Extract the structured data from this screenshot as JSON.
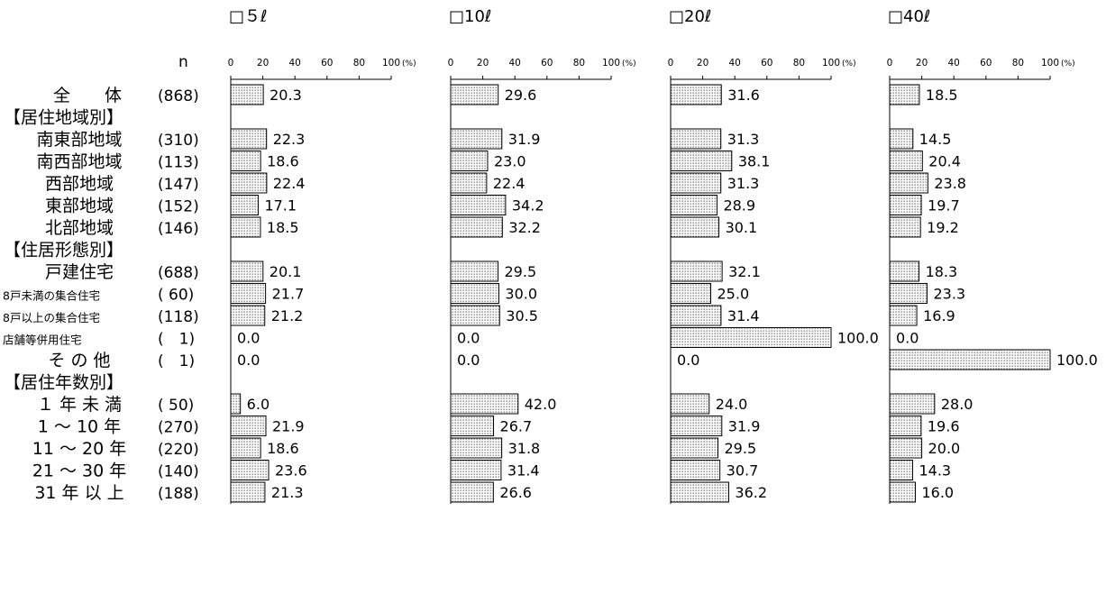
{
  "n_header": "n",
  "chart_data": {
    "type": "bar",
    "orientation": "horizontal",
    "xlim": [
      0,
      100
    ],
    "ticks": [
      "0",
      "20",
      "40",
      "60",
      "80",
      "100"
    ],
    "unit": "(%)",
    "grid": false,
    "legend": "none",
    "bar_fill": "dotted",
    "rows": [
      {
        "label": "全　　体",
        "n": "(868)",
        "values": [
          20.3,
          29.6,
          31.6,
          18.5
        ]
      },
      {
        "label": "【居住地域別】",
        "header": true
      },
      {
        "label": "南東部地域",
        "n": "(310)",
        "values": [
          22.3,
          31.9,
          31.3,
          14.5
        ]
      },
      {
        "label": "南西部地域",
        "n": "(113)",
        "values": [
          18.6,
          23.0,
          38.1,
          20.4
        ]
      },
      {
        "label": "西部地域",
        "n": "(147)",
        "values": [
          22.4,
          22.4,
          31.3,
          23.8
        ]
      },
      {
        "label": "東部地域",
        "n": "(152)",
        "values": [
          17.1,
          34.2,
          28.9,
          19.7
        ]
      },
      {
        "label": "北部地域",
        "n": "(146)",
        "values": [
          18.5,
          32.2,
          30.1,
          19.2
        ]
      },
      {
        "label": "【住居形態別】",
        "header": true
      },
      {
        "label": "戸建住宅",
        "n": "(688)",
        "values": [
          20.1,
          29.5,
          32.1,
          18.3
        ]
      },
      {
        "label": "8戸未満の集合住宅",
        "n": "( 60)",
        "values": [
          21.7,
          30.0,
          25.0,
          23.3
        ],
        "small": true
      },
      {
        "label": "8戸以上の集合住宅",
        "n": "(118)",
        "values": [
          21.2,
          30.5,
          31.4,
          16.9
        ],
        "small": true
      },
      {
        "label": "店舗等併用住宅",
        "n": "(　1)",
        "values": [
          0.0,
          0.0,
          100.0,
          0.0
        ],
        "small": true
      },
      {
        "label": "そ の 他",
        "n": "(　1)",
        "values": [
          0.0,
          0.0,
          0.0,
          100.0
        ]
      },
      {
        "label": "【居住年数別】",
        "header": true
      },
      {
        "label": "１ 年 未 満",
        "n": "( 50)",
        "values": [
          6.0,
          42.0,
          24.0,
          28.0
        ]
      },
      {
        "label": "1 ～ 10 年",
        "n": "(270)",
        "values": [
          21.9,
          26.7,
          31.9,
          19.6
        ]
      },
      {
        "label": "11 ～ 20 年",
        "n": "(220)",
        "values": [
          18.6,
          31.8,
          29.5,
          20.0
        ]
      },
      {
        "label": "21 ～ 30 年",
        "n": "(140)",
        "values": [
          23.6,
          31.4,
          30.7,
          14.3
        ]
      },
      {
        "label": "31 年 以 上",
        "n": "(188)",
        "values": [
          21.3,
          26.6,
          36.2,
          16.0
        ]
      }
    ],
    "series": [
      {
        "name": "□５ℓ"
      },
      {
        "name": "□10ℓ"
      },
      {
        "name": "□20ℓ"
      },
      {
        "name": "□40ℓ"
      }
    ]
  }
}
